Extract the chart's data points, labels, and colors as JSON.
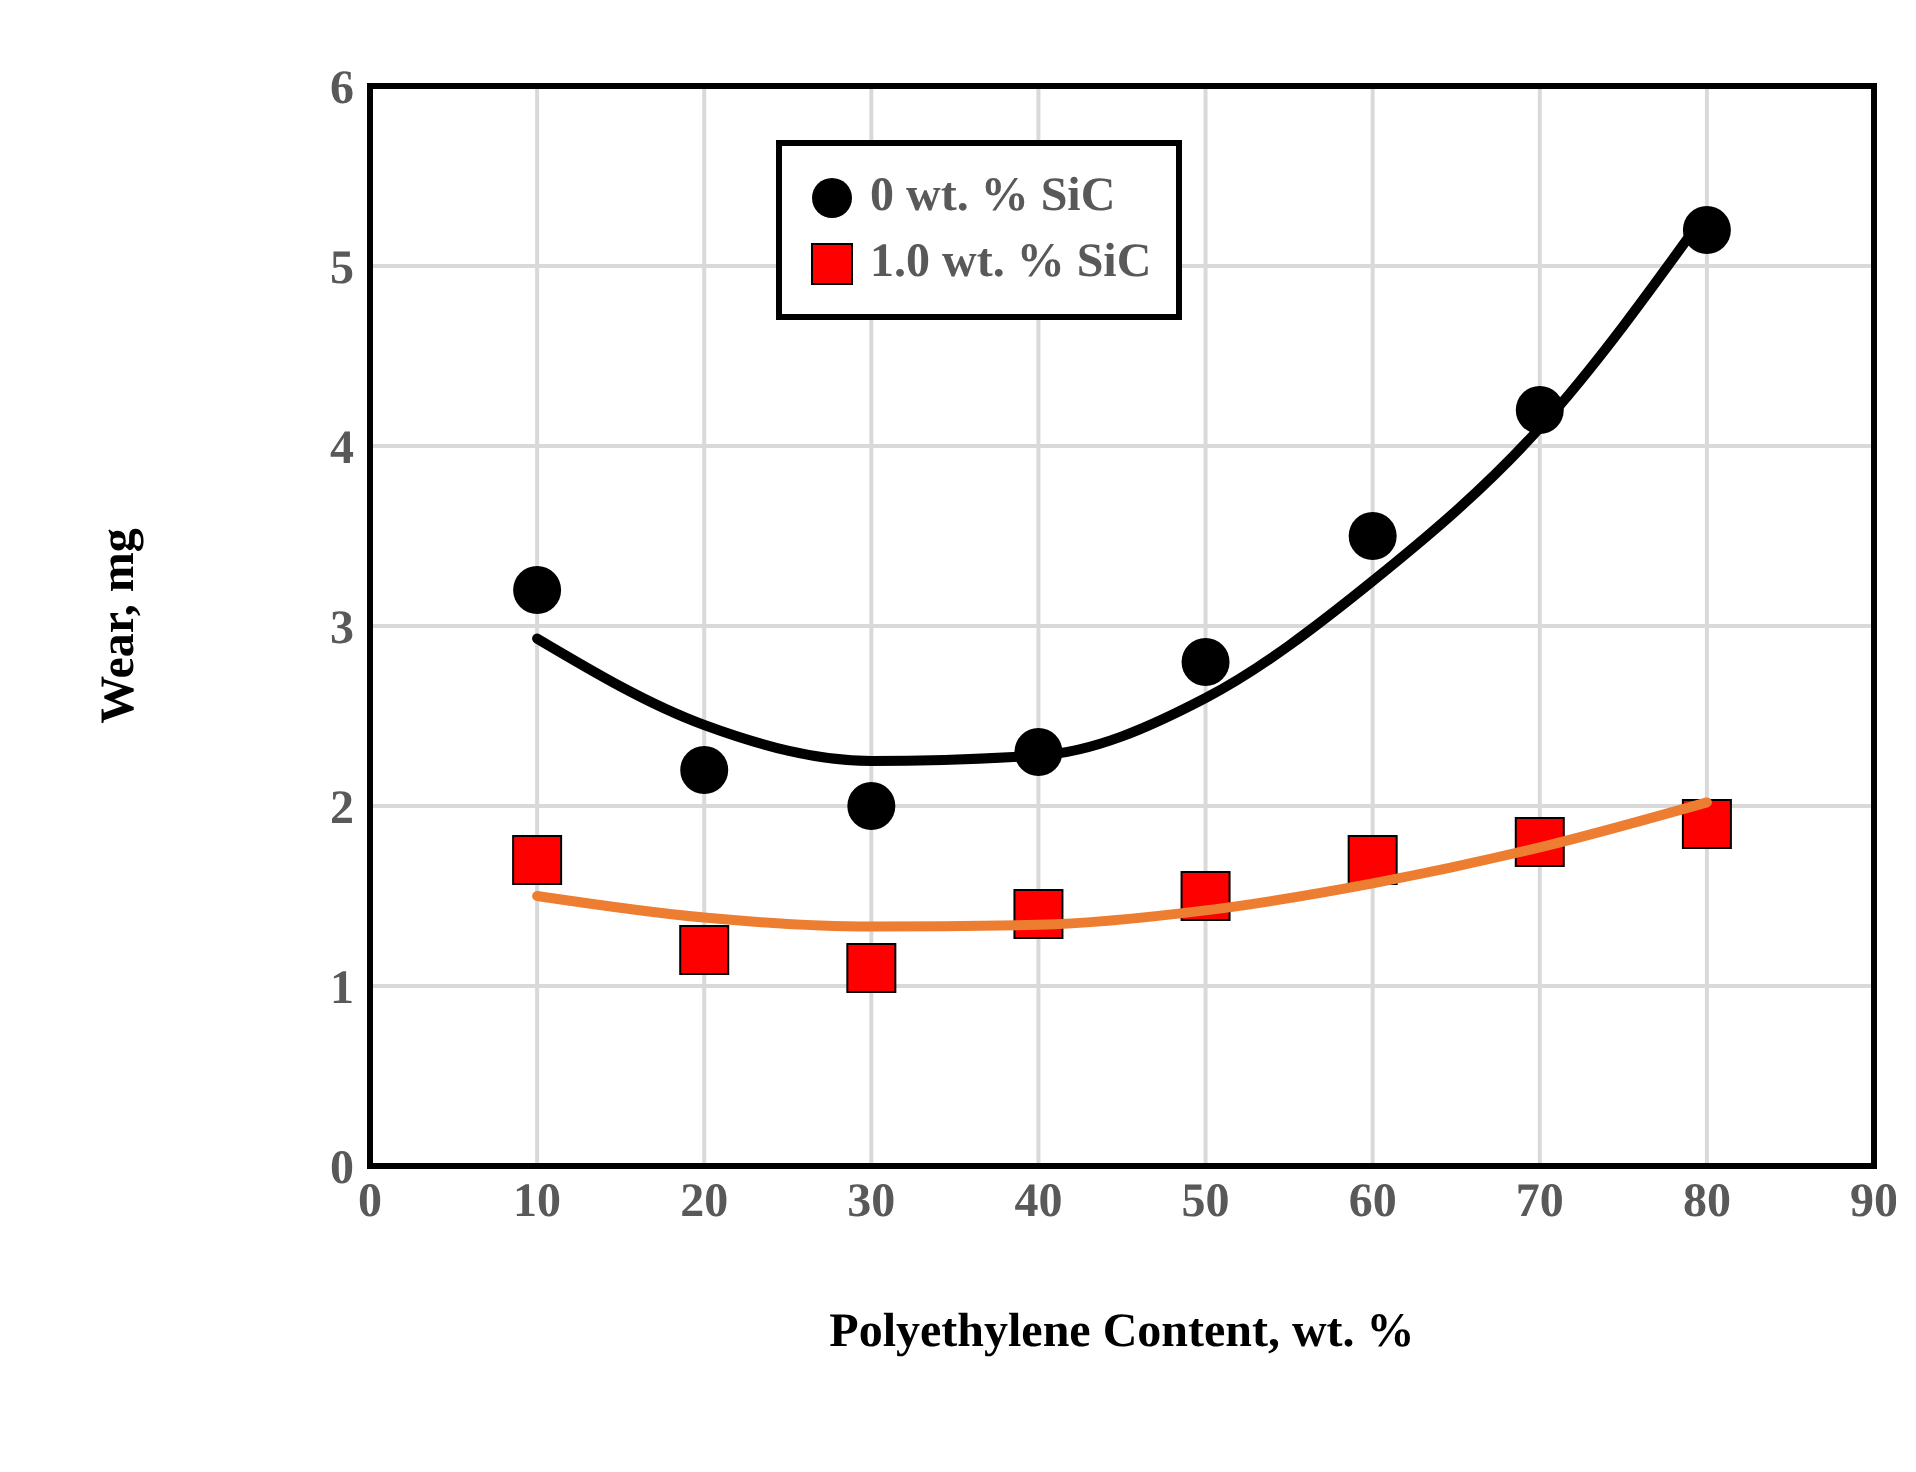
{
  "chart_data": {
    "type": "scatter",
    "xlabel": "Polyethylene Content, wt. %",
    "ylabel": "Wear, mg",
    "x": [
      10,
      20,
      30,
      40,
      50,
      60,
      70,
      80
    ],
    "xlim": [
      0,
      90
    ],
    "xticks": [
      0,
      10,
      20,
      30,
      40,
      50,
      60,
      70,
      80,
      90
    ],
    "ylim": [
      0,
      6
    ],
    "yticks": [
      0,
      1,
      2,
      3,
      4,
      5,
      6
    ],
    "grid": true,
    "legend": "top",
    "series": [
      {
        "name": "0 wt. % SiC",
        "color": "#000000",
        "marker": "circle",
        "values": [
          3.2,
          2.2,
          2.0,
          2.3,
          2.8,
          3.5,
          4.2,
          5.2
        ]
      },
      {
        "name": "1.0 wt. % SiC",
        "color": "#ff0000",
        "marker": "square",
        "values": [
          1.7,
          1.2,
          1.1,
          1.4,
          1.5,
          1.7,
          1.8,
          1.9
        ]
      },
      {
        "type": "line",
        "color": "#000000",
        "marker": "none",
        "x": [
          10,
          20,
          30,
          40,
          50,
          60,
          70,
          80
        ],
        "values": [
          2.93,
          2.45,
          2.25,
          2.28,
          2.6,
          3.25,
          4.1,
          5.3
        ]
      },
      {
        "type": "line",
        "color": "#ed7d31",
        "marker": "none",
        "x": [
          10,
          20,
          30,
          40,
          50,
          60,
          70,
          80
        ],
        "values": [
          1.5,
          1.38,
          1.33,
          1.34,
          1.42,
          1.57,
          1.77,
          2.02
        ]
      }
    ]
  }
}
